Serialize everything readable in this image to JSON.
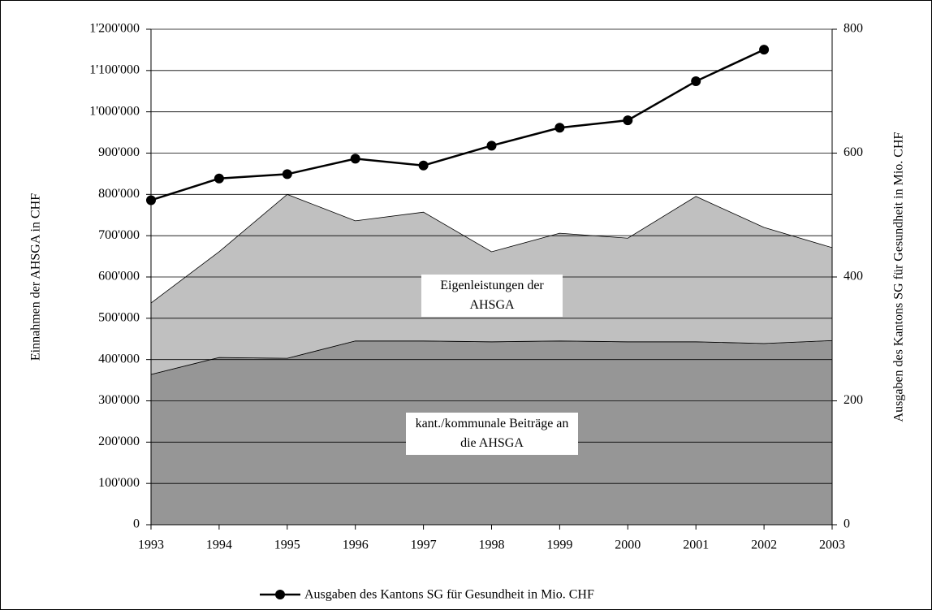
{
  "chart_data": {
    "type": "area-line",
    "y_label": "Einnahmen der AHSGA in CHF",
    "y2_label": "Ausgaben des Kantons SG für Gesundheit in Mio. CHF",
    "categories": [
      "1993",
      "1994",
      "1995",
      "1996",
      "1997",
      "1998",
      "1999",
      "2000",
      "2001",
      "2002",
      "2003"
    ],
    "series": [
      {
        "name": "kant./kommunale Beiträge an die AHSGA",
        "color": "#969696",
        "stacked": true,
        "values": [
          364000,
          405000,
          403000,
          445000,
          445000,
          443000,
          445000,
          443000,
          443000,
          439000,
          446000
        ]
      },
      {
        "name": "Eigenleistungen der AHSGA",
        "color": "#c0c0c0",
        "stacked": true,
        "values": [
          173000,
          256000,
          397000,
          291000,
          312000,
          218000,
          261000,
          251000,
          352000,
          281000,
          225000
        ]
      },
      {
        "name": "Ausgaben des Kantons SG für Gesundheit in Mio. CHF",
        "color": "#000000",
        "axis": "y2",
        "values": [
          524,
          559,
          566,
          591,
          580,
          612,
          641,
          653,
          716,
          767,
          null
        ]
      }
    ],
    "ylim": [
      0,
      1200000
    ],
    "yticks": [
      0,
      {
        "value": 100000,
        "label": "100'000"
      },
      {
        "value": 200000,
        "label": "200'000"
      },
      {
        "value": 300000,
        "label": "300'000"
      },
      {
        "value": 400000,
        "label": "400'000"
      },
      {
        "value": 500000,
        "label": "500'000"
      },
      {
        "value": 600000,
        "label": "600'000"
      },
      {
        "value": 700000,
        "label": "700'000"
      },
      {
        "value": 800000,
        "label": "800'000"
      },
      {
        "value": 900000,
        "label": "900'000"
      },
      {
        "value": 1000000,
        "label": "1'000'000"
      },
      {
        "value": 1100000,
        "label": "1'100'000"
      },
      {
        "value": 1200000,
        "label": "1'200'000"
      }
    ],
    "y2lim": [
      0,
      800
    ],
    "y2ticks": [
      0,
      200,
      400,
      600,
      800
    ],
    "grid": true
  }
}
